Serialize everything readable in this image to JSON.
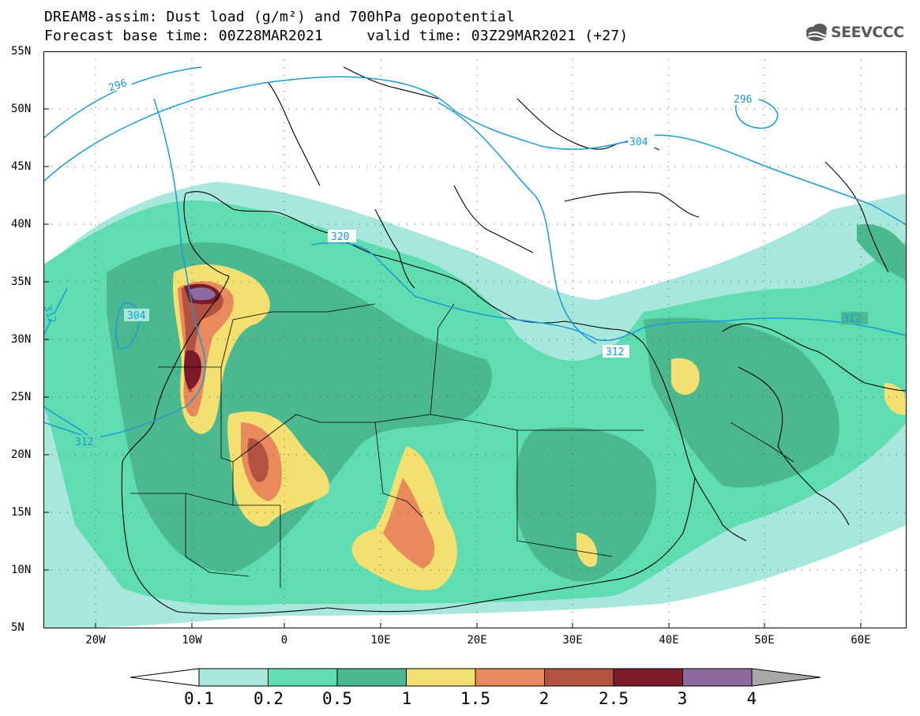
{
  "header": {
    "title_line1": "DREAM8-assim: Dust load (g/m²) and 700hPa geopotential",
    "title_line2": "Forecast base time: 00Z28MAR2021     valid time: 03Z29MAR2021 (+27)"
  },
  "logo": {
    "text": "SEEVCCC",
    "icon": "cloud-icon"
  },
  "map": {
    "lon_range": [
      -25,
      65
    ],
    "lat_range": [
      5,
      55
    ],
    "x_ticks": [
      "20W",
      "10W",
      "0",
      "10E",
      "20E",
      "30E",
      "40E",
      "50E",
      "60E"
    ],
    "y_ticks": [
      "55N",
      "50N",
      "45N",
      "40N",
      "35N",
      "30N",
      "25N",
      "20N",
      "15N",
      "10N",
      "5N"
    ],
    "contour_labels": [
      "296",
      "304",
      "312",
      "320",
      "312",
      "304",
      "312",
      "296",
      "312"
    ],
    "contour_color": "#1a9ad8"
  },
  "colorbar": {
    "labels": [
      "0.1",
      "0.2",
      "0.5",
      "1",
      "1.5",
      "2",
      "2.5",
      "3",
      "4"
    ],
    "colors": [
      "#ffffff",
      "#a8e8dc",
      "#5fdcb0",
      "#4cb890",
      "#f4e070",
      "#e88a5c",
      "#b25240",
      "#7a1a2a",
      "#8c6aa0",
      "#a8a8a8"
    ]
  }
}
